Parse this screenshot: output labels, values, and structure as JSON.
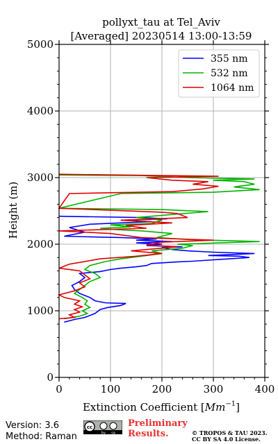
{
  "chart_data": {
    "type": "line",
    "title": "pollyxt_tau at Tel_Aviv",
    "subtitle": "[Averaged] 20230514 13:00-13:59",
    "xlabel": "Extinction Coefficient [$Mm^{-1}$]",
    "xlabel_text": "Extinction Coefficient [",
    "xlabel_unit": "Mm",
    "xlabel_exp": "−1",
    "xlabel_close": "]",
    "ylabel": "Height (m)",
    "xlim": [
      0,
      400
    ],
    "ylim": [
      0,
      5000
    ],
    "x_ticks": [
      0,
      100,
      200,
      300,
      400
    ],
    "y_ticks": [
      0,
      1000,
      2000,
      3000,
      4000,
      5000
    ],
    "grid": true,
    "legend_position": "top-right",
    "series": [
      {
        "name": "355 nm",
        "color": "#0000ff",
        "points": [
          [
            10,
            830
          ],
          [
            30,
            870
          ],
          [
            50,
            900
          ],
          [
            70,
            960
          ],
          [
            80,
            1020
          ],
          [
            95,
            1050
          ],
          [
            120,
            1080
          ],
          [
            130,
            1110
          ],
          [
            90,
            1120
          ],
          [
            70,
            1150
          ],
          [
            60,
            1200
          ],
          [
            40,
            1260
          ],
          [
            30,
            1320
          ],
          [
            25,
            1380
          ],
          [
            40,
            1440
          ],
          [
            50,
            1500
          ],
          [
            40,
            1560
          ],
          [
            80,
            1590
          ],
          [
            100,
            1620
          ],
          [
            120,
            1640
          ],
          [
            150,
            1660
          ],
          [
            170,
            1680
          ],
          [
            180,
            1710
          ],
          [
            220,
            1730
          ],
          [
            260,
            1745
          ],
          [
            290,
            1760
          ],
          [
            310,
            1770
          ],
          [
            370,
            1800
          ],
          [
            350,
            1820
          ],
          [
            290,
            1830
          ],
          [
            380,
            1860
          ],
          [
            300,
            1880
          ],
          [
            250,
            1900
          ],
          [
            220,
            1920
          ],
          [
            200,
            1950
          ],
          [
            240,
            1960
          ],
          [
            170,
            1980
          ],
          [
            200,
            2000
          ],
          [
            150,
            2020
          ],
          [
            220,
            2040
          ],
          [
            150,
            2060
          ],
          [
            190,
            2080
          ],
          [
            120,
            2100
          ],
          [
            60,
            2110
          ],
          [
            10,
            2120
          ],
          [
            50,
            2180
          ],
          [
            20,
            2250
          ],
          [
            60,
            2300
          ],
          [
            180,
            2340
          ],
          [
            120,
            2360
          ],
          [
            210,
            2380
          ],
          [
            160,
            2400
          ],
          [
            0,
            2420
          ]
        ]
      },
      {
        "name": "532 nm",
        "color": "#00b300",
        "points": [
          [
            10,
            880
          ],
          [
            40,
            920
          ],
          [
            55,
            960
          ],
          [
            45,
            1000
          ],
          [
            60,
            1050
          ],
          [
            50,
            1100
          ],
          [
            55,
            1150
          ],
          [
            45,
            1200
          ],
          [
            30,
            1260
          ],
          [
            40,
            1320
          ],
          [
            50,
            1380
          ],
          [
            60,
            1440
          ],
          [
            80,
            1500
          ],
          [
            70,
            1560
          ],
          [
            50,
            1620
          ],
          [
            60,
            1680
          ],
          [
            90,
            1740
          ],
          [
            120,
            1780
          ],
          [
            160,
            1820
          ],
          [
            200,
            1860
          ],
          [
            180,
            1900
          ],
          [
            240,
            1940
          ],
          [
            260,
            1980
          ],
          [
            230,
            2000
          ],
          [
            390,
            2040
          ],
          [
            250,
            2070
          ],
          [
            190,
            2100
          ],
          [
            220,
            2160
          ],
          [
            160,
            2200
          ],
          [
            110,
            2220
          ],
          [
            80,
            2240
          ],
          [
            140,
            2260
          ],
          [
            100,
            2290
          ],
          [
            180,
            2310
          ],
          [
            200,
            2360
          ],
          [
            150,
            2400
          ],
          [
            210,
            2440
          ],
          [
            290,
            2490
          ],
          [
            200,
            2520
          ],
          [
            0,
            2540
          ],
          [
            120,
            2760
          ],
          [
            300,
            2780
          ],
          [
            390,
            2820
          ],
          [
            340,
            2860
          ],
          [
            380,
            2900
          ],
          [
            360,
            2940
          ],
          [
            300,
            2960
          ],
          [
            380,
            2980
          ],
          [
            250,
            3000
          ],
          [
            160,
            3030
          ],
          [
            0,
            3040
          ]
        ]
      },
      {
        "name": "1064 nm",
        "color": "#e00000",
        "points": [
          [
            0,
            880
          ],
          [
            30,
            900
          ],
          [
            20,
            940
          ],
          [
            40,
            980
          ],
          [
            30,
            1020
          ],
          [
            45,
            1060
          ],
          [
            30,
            1100
          ],
          [
            40,
            1150
          ],
          [
            10,
            1200
          ],
          [
            0,
            1240
          ],
          [
            30,
            1300
          ],
          [
            50,
            1360
          ],
          [
            40,
            1420
          ],
          [
            60,
            1480
          ],
          [
            50,
            1540
          ],
          [
            40,
            1600
          ],
          [
            0,
            1640
          ],
          [
            20,
            1700
          ],
          [
            80,
            1780
          ],
          [
            150,
            1820
          ],
          [
            200,
            1860
          ],
          [
            140,
            1900
          ],
          [
            230,
            1960
          ],
          [
            170,
            1990
          ],
          [
            200,
            2030
          ],
          [
            300,
            2060
          ],
          [
            160,
            2100
          ],
          [
            100,
            2160
          ],
          [
            0,
            2200
          ],
          [
            170,
            2240
          ],
          [
            130,
            2280
          ],
          [
            220,
            2320
          ],
          [
            120,
            2360
          ],
          [
            250,
            2400
          ],
          [
            230,
            2460
          ],
          [
            200,
            2480
          ],
          [
            0,
            2540
          ],
          [
            20,
            2760
          ],
          [
            220,
            2790
          ],
          [
            280,
            2830
          ],
          [
            310,
            2870
          ],
          [
            260,
            2900
          ],
          [
            290,
            2940
          ],
          [
            220,
            2960
          ],
          [
            170,
            3000
          ],
          [
            310,
            3020
          ],
          [
            0,
            3050
          ]
        ]
      }
    ]
  },
  "footer": {
    "version": "Version: 3.6",
    "method": "Method: Raman",
    "prelim_line1": "Preliminary",
    "prelim_line2": "Results.",
    "copyright_line1": "© TROPOS & TAU 2023.",
    "copyright_line2": "CC BY SA 4.0 License.",
    "license_badge": [
      "cc",
      "by",
      "sa"
    ]
  }
}
